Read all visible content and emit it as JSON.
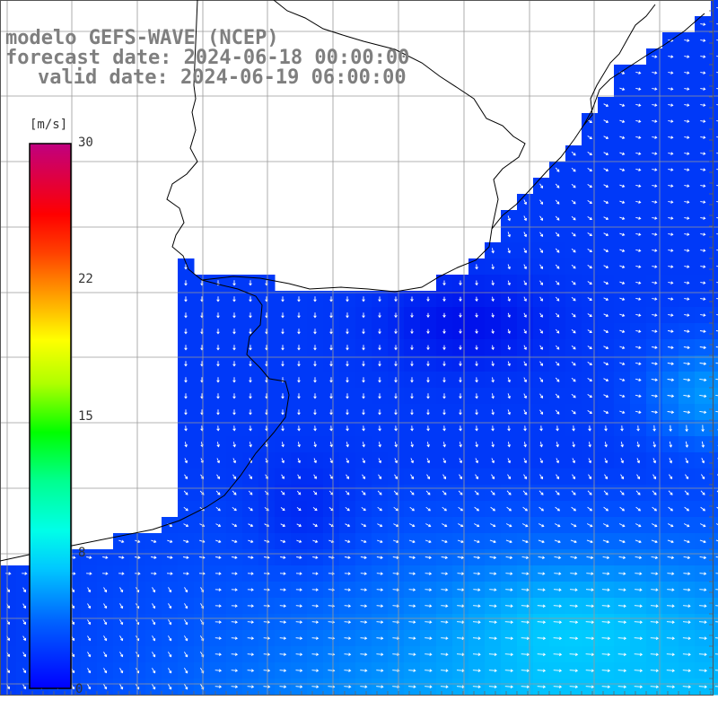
{
  "title": {
    "line1": "modelo GEFS-WAVE (NCEP)",
    "line2": "forecast date: 2024-06-18 00:00:00",
    "line3": "valid date: 2024-06-19 06:00:00"
  },
  "colorbar": {
    "unit": "[m/s]",
    "ticks": [
      "30",
      "22",
      "15",
      "8",
      "0"
    ],
    "tick_values": [
      30,
      22,
      15,
      8,
      0
    ],
    "colors": [
      "#0000ff",
      "#0070ff",
      "#00c8ff",
      "#00ffe0",
      "#00ff80",
      "#00ff00",
      "#a0ff00",
      "#ffff00",
      "#ffb000",
      "#ff6000",
      "#ff0000",
      "#e00060",
      "#c00080"
    ]
  },
  "map": {
    "variable": "wind speed and direction",
    "land_color": "#ffffff",
    "grid_color": "#999999",
    "vector_color": "#ffffff"
  }
}
